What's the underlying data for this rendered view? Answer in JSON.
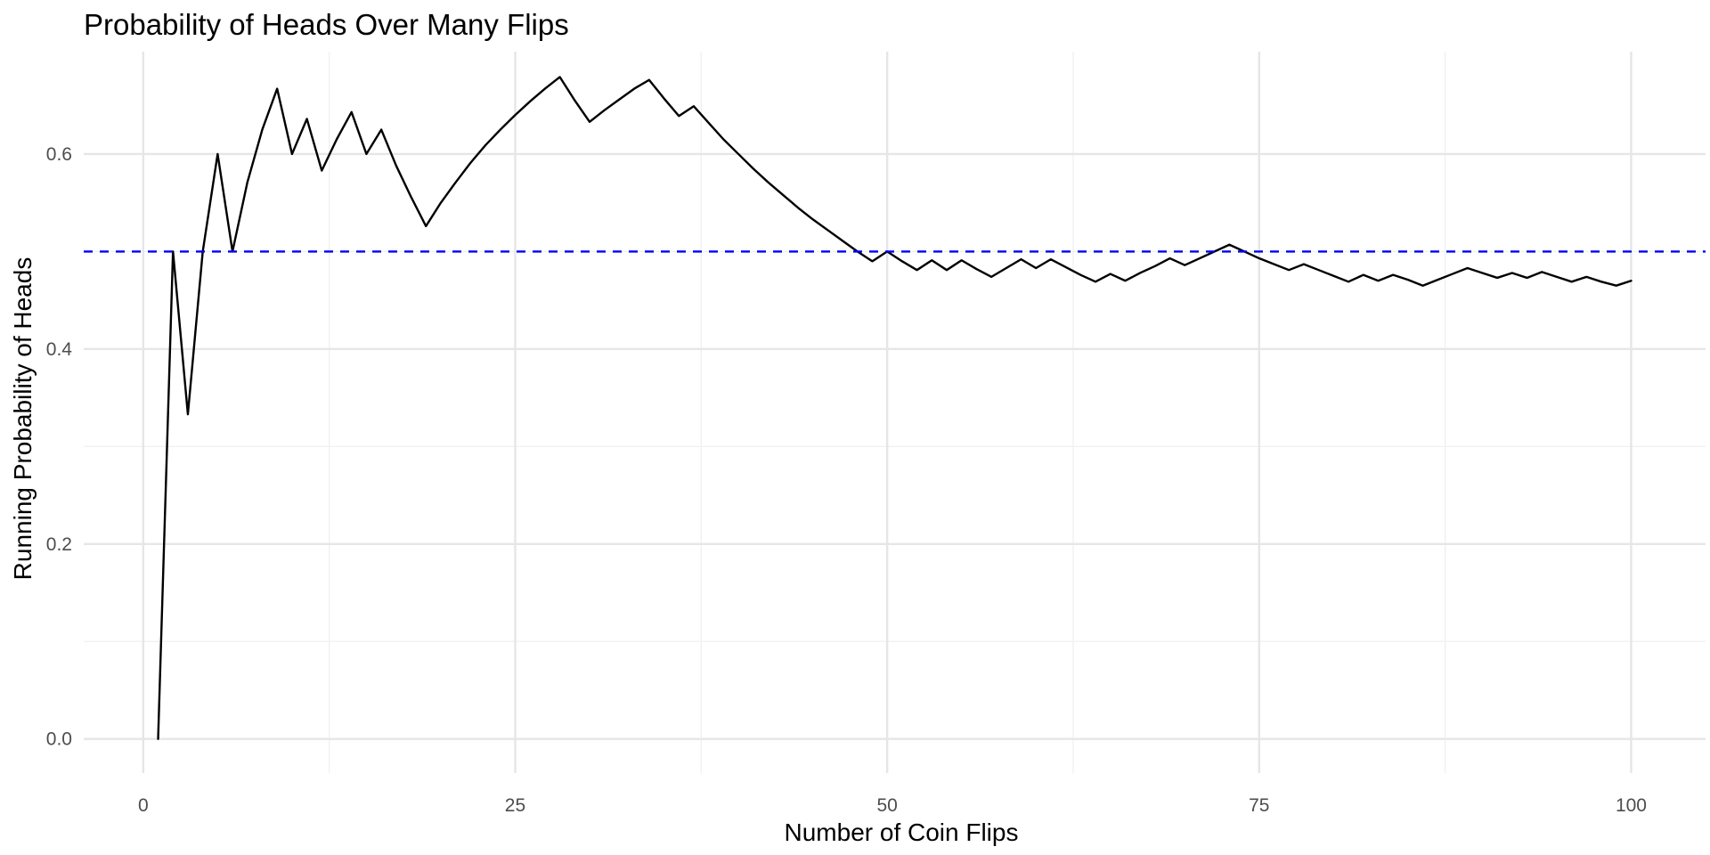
{
  "chart_data": {
    "type": "line",
    "title": "Probability of Heads Over Many Flips",
    "xlabel": "Number of Coin Flips",
    "ylabel": "Running Probability of Heads",
    "xlim": [
      -4,
      105
    ],
    "ylim": [
      -0.035,
      0.705
    ],
    "x_ticks": [
      0,
      25,
      50,
      75,
      100
    ],
    "x_tick_labels": [
      "0",
      "25",
      "50",
      "75",
      "100"
    ],
    "y_ticks": [
      0.0,
      0.2,
      0.4,
      0.6
    ],
    "y_tick_labels": [
      "0.0",
      "0.2",
      "0.4",
      "0.6"
    ],
    "grid": true,
    "reference_line": {
      "y": 0.5,
      "style": "dashed",
      "color": "#0000ff"
    },
    "line_color": "#000000",
    "series": [
      {
        "x": [
          1,
          2,
          3,
          4,
          5,
          6,
          7,
          8,
          9,
          10,
          11,
          12,
          13,
          14,
          15,
          16,
          17,
          18,
          19,
          20,
          21,
          22,
          23,
          24,
          25,
          26,
          27,
          28,
          29,
          30,
          31,
          32,
          33,
          34,
          35,
          36,
          37,
          38,
          39,
          40,
          41,
          42,
          43,
          44,
          45,
          46,
          47,
          48,
          49,
          50,
          51,
          52,
          53,
          54,
          55,
          56,
          57,
          58,
          59,
          60,
          61,
          62,
          63,
          64,
          65,
          66,
          67,
          68,
          69,
          70,
          71,
          72,
          73,
          74,
          75,
          76,
          77,
          78,
          79,
          80,
          81,
          82,
          83,
          84,
          85,
          86,
          87,
          88,
          89,
          90,
          91,
          92,
          93,
          94,
          95,
          96,
          97,
          98,
          99,
          100
        ],
        "values": [
          0.0,
          0.5,
          0.333,
          0.5,
          0.6,
          0.5,
          0.571,
          0.625,
          0.667,
          0.6,
          0.636,
          0.583,
          0.615,
          0.643,
          0.6,
          0.625,
          0.588,
          0.556,
          0.526,
          0.55,
          0.571,
          0.591,
          0.609,
          0.625,
          0.64,
          0.654,
          0.667,
          0.679,
          0.655,
          0.633,
          0.645,
          0.656,
          0.667,
          0.676,
          0.657,
          0.639,
          0.649,
          0.632,
          0.615,
          0.6,
          0.585,
          0.571,
          0.558,
          0.545,
          0.533,
          0.522,
          0.511,
          0.5,
          0.49,
          0.5,
          0.49,
          0.481,
          0.491,
          0.481,
          0.491,
          0.482,
          0.474,
          0.483,
          0.492,
          0.483,
          0.492,
          0.484,
          0.476,
          0.469,
          0.477,
          0.47,
          0.478,
          0.485,
          0.493,
          0.486,
          0.493,
          0.5,
          0.507,
          0.5,
          0.493,
          0.487,
          0.481,
          0.487,
          0.481,
          0.475,
          0.469,
          0.476,
          0.47,
          0.476,
          0.471,
          0.465,
          0.471,
          0.477,
          0.483,
          0.478,
          0.473,
          0.478,
          0.473,
          0.479,
          0.474,
          0.469,
          0.474,
          0.469,
          0.465,
          0.47
        ]
      }
    ]
  }
}
